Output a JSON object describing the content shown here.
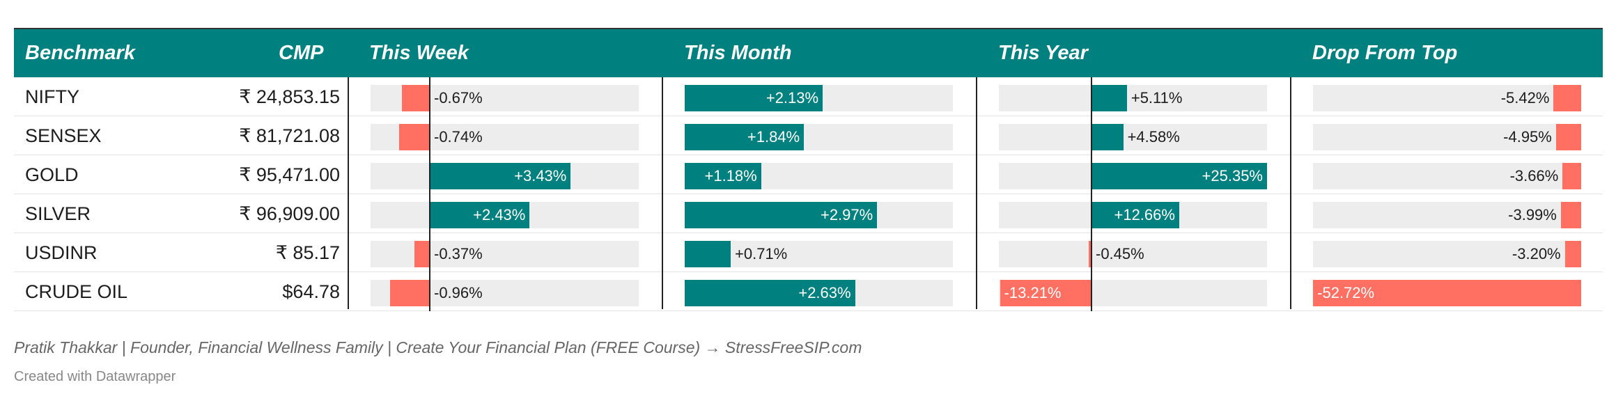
{
  "header": {
    "benchmark": "Benchmark",
    "cmp": "CMP",
    "this_week": "This Week",
    "this_month": "This Month",
    "this_year": "This Year",
    "drop_from_top": "Drop From Top"
  },
  "colors": {
    "header_bg": "#00807e",
    "positive": "#00807e",
    "negative": "#ff7063",
    "track": "#ededed"
  },
  "chart_data": {
    "type": "table",
    "columns": [
      "This Week",
      "This Month",
      "This Year",
      "Drop From Top"
    ],
    "rows": [
      {
        "benchmark": "NIFTY",
        "cmp": "₹ 24,853.15",
        "week": -0.67,
        "week_label": "-0.67%",
        "month": 2.13,
        "month_label": "+2.13%",
        "year": 5.11,
        "year_label": "+5.11%",
        "drop": -5.42,
        "drop_label": "-5.42%"
      },
      {
        "benchmark": "SENSEX",
        "cmp": "₹ 81,721.08",
        "week": -0.74,
        "week_label": "-0.74%",
        "month": 1.84,
        "month_label": "+1.84%",
        "year": 4.58,
        "year_label": "+4.58%",
        "drop": -4.95,
        "drop_label": "-4.95%"
      },
      {
        "benchmark": "GOLD",
        "cmp": "₹ 95,471.00",
        "week": 3.43,
        "week_label": "+3.43%",
        "month": 1.18,
        "month_label": "+1.18%",
        "year": 25.35,
        "year_label": "+25.35%",
        "drop": -3.66,
        "drop_label": "-3.66%"
      },
      {
        "benchmark": "SILVER",
        "cmp": "₹ 96,909.00",
        "week": 2.43,
        "week_label": "+2.43%",
        "month": 2.97,
        "month_label": "+2.97%",
        "year": 12.66,
        "year_label": "+12.66%",
        "drop": -3.99,
        "drop_label": "-3.99%"
      },
      {
        "benchmark": "USDINR",
        "cmp": "₹ 85.17",
        "week": -0.37,
        "week_label": "-0.37%",
        "month": 0.71,
        "month_label": "+0.71%",
        "year": -0.45,
        "year_label": "-0.45%",
        "drop": -3.2,
        "drop_label": "-3.20%"
      },
      {
        "benchmark": "CRUDE OIL",
        "cmp": "$64.78",
        "week": -0.96,
        "week_label": "-0.96%",
        "month": 2.63,
        "month_label": "+2.63%",
        "year": -13.21,
        "year_label": "-13.21%",
        "drop": -52.72,
        "drop_label": "-52.72%"
      }
    ]
  },
  "footer": {
    "byline": "Pratik Thakkar | Founder, Financial Wellness Family | Create Your Financial Plan (FREE Course) → StressFreeSIP.com",
    "credit": "Created with Datawrapper"
  }
}
